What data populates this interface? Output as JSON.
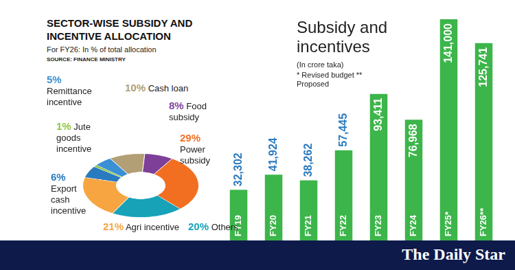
{
  "brand": "The Daily Star",
  "chart_data": [
    {
      "type": "doughnut",
      "title": "SECTOR-WISE SUBSIDY AND INCENTIVE ALLOCATION",
      "subtitle": "For FY26: In % of total allocation",
      "source": "SOURCE: FINANCE MINISTRY",
      "categories": [
        "Cash loan",
        "Food subsidy",
        "Power subsidy",
        "Others",
        "Agri incentive",
        "Export cash incentive",
        "Jute goods incentive",
        "Remittance incentive"
      ],
      "values": [
        10,
        8,
        29,
        20,
        21,
        6,
        1,
        5
      ],
      "value_labels": [
        "10%",
        "8%",
        "29%",
        "20%",
        "21%",
        "6%",
        "1%",
        "5%"
      ],
      "colors": [
        "#b39f76",
        "#7d3f98",
        "#f26f21",
        "#17a2b8",
        "#f7a541",
        "#2a7abf",
        "#8dc63f",
        "#3b8fd4"
      ],
      "data_labels": true
    },
    {
      "type": "bar",
      "title": "Subsidy and incentives",
      "subtitle": "(In crore taka)",
      "note": "* Revised budget ** Proposed",
      "categories": [
        "FY19",
        "FY20",
        "FY21",
        "FY22",
        "FY23",
        "FY24",
        "FY25*",
        "FY26**"
      ],
      "values": [
        32302,
        41924,
        38262,
        57445,
        93411,
        76968,
        141000,
        125741
      ],
      "value_labels": [
        "32,302",
        "41,924",
        "38,262",
        "57,445",
        "93,411",
        "76,968",
        "141,000",
        "125,741"
      ],
      "color": "#3cb54a",
      "ylim": [
        0,
        141000
      ],
      "grid": false,
      "data_labels": true,
      "tick_labels": false
    }
  ]
}
